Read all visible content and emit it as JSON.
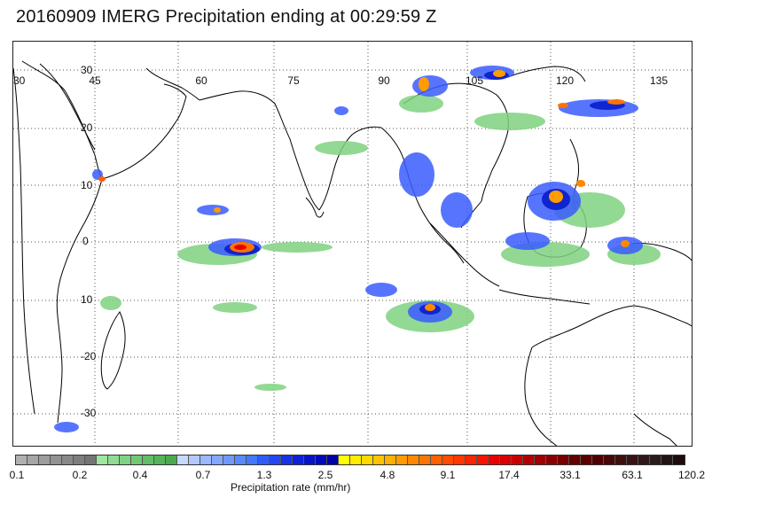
{
  "title": "20160909 IMERG Precipitation ending at 00:29:59 Z",
  "map": {
    "longitude_labels": [
      "30",
      "45",
      "60",
      "75",
      "90",
      "105",
      "120",
      "135"
    ],
    "latitude_labels": [
      "30",
      "20",
      "10",
      "0",
      "10",
      "-20",
      "-30"
    ],
    "gridline_style": "dotted",
    "coastline_color": "#000000"
  },
  "colorbar": {
    "title": "Precipitation rate (mm/hr)",
    "tick_labels": [
      "0.1",
      "0.2",
      "0.4",
      "0.7",
      "1.3",
      "2.5",
      "4.8",
      "9.1",
      "17.4",
      "33.1",
      "63.1",
      "120.2"
    ],
    "colors": [
      "#b0b0b0",
      "#a6a6a6",
      "#9c9c9c",
      "#929292",
      "#888888",
      "#7e7e7e",
      "#747474",
      "#9fe6a0",
      "#8fdc90",
      "#7fd280",
      "#70c873",
      "#62be66",
      "#55b45a",
      "#49aa4f",
      "#c8d8ff",
      "#b2c8ff",
      "#9cb8ff",
      "#86a8ff",
      "#7098ff",
      "#5a88ff",
      "#4478ff",
      "#2e5cff",
      "#2248f4",
      "#1634e6",
      "#0b22d8",
      "#0614c8",
      "#030ab8",
      "#0000a8",
      "#ffff00",
      "#ffec00",
      "#ffd800",
      "#ffc400",
      "#ffb000",
      "#ff9c00",
      "#ff8800",
      "#ff7400",
      "#ff6000",
      "#ff4c00",
      "#ff3800",
      "#ff2400",
      "#f51400",
      "#e80000",
      "#d80000",
      "#c80000",
      "#b40000",
      "#a00000",
      "#8c0000",
      "#780000",
      "#640000",
      "#5a0000",
      "#500000",
      "#480808",
      "#401010",
      "#381414",
      "#301818",
      "#281c1c",
      "#241414",
      "#200c0c"
    ]
  }
}
